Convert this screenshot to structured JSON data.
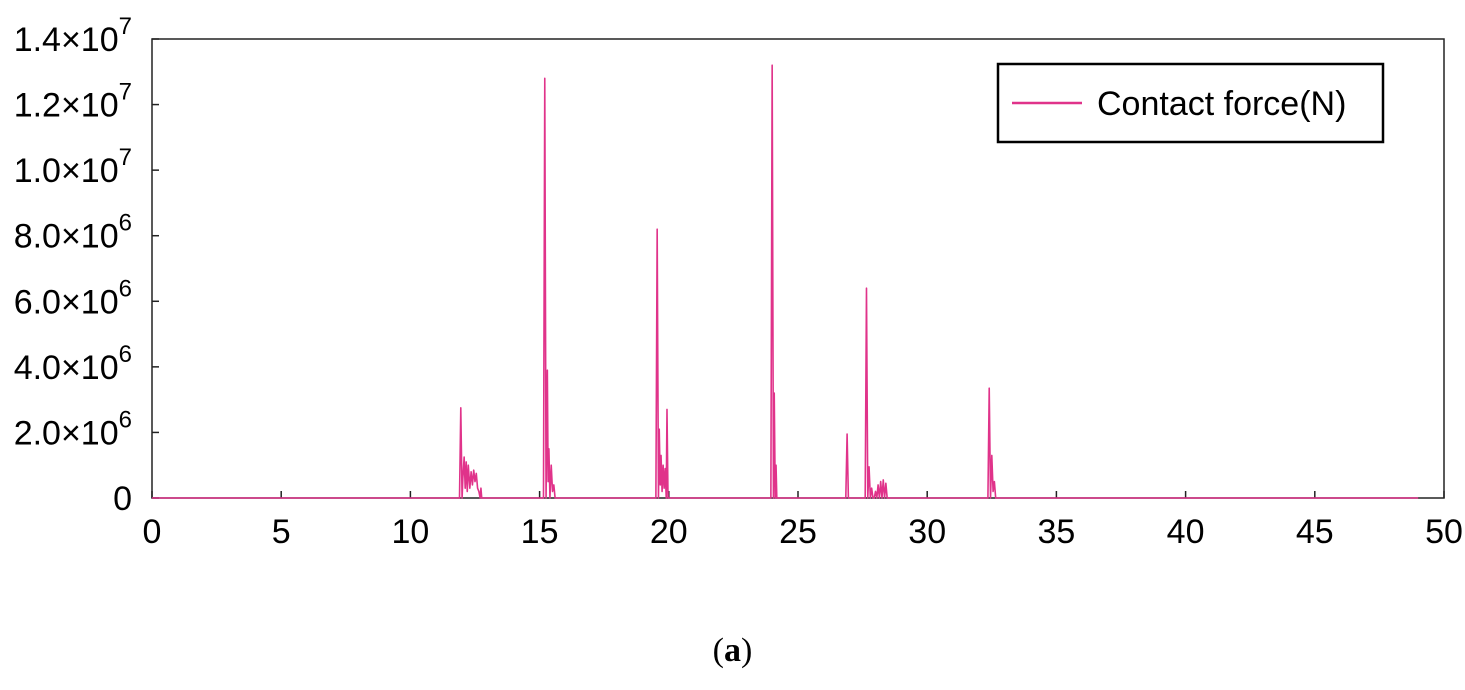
{
  "caption": {
    "open": "(",
    "letter": "a",
    "close": ")"
  },
  "chart_data": {
    "type": "line",
    "xlim": [
      0,
      50
    ],
    "ylim": [
      0,
      14000000
    ],
    "x_ticks": [
      0,
      5,
      10,
      15,
      20,
      25,
      30,
      35,
      40,
      45,
      50
    ],
    "x_tick_labels": [
      "0",
      "5",
      "10",
      "15",
      "20",
      "25",
      "30",
      "35",
      "40",
      "45",
      "50"
    ],
    "y_ticks": [
      {
        "value": 0,
        "mantissa": "0",
        "exponent": ""
      },
      {
        "value": 2000000,
        "mantissa": "2.0×10",
        "exponent": "6"
      },
      {
        "value": 4000000,
        "mantissa": "4.0×10",
        "exponent": "6"
      },
      {
        "value": 6000000,
        "mantissa": "6.0×10",
        "exponent": "6"
      },
      {
        "value": 8000000,
        "mantissa": "8.0×10",
        "exponent": "6"
      },
      {
        "value": 10000000,
        "mantissa": "1.0×10",
        "exponent": "7"
      },
      {
        "value": 12000000,
        "mantissa": "1.2×10",
        "exponent": "7"
      },
      {
        "value": 14000000,
        "mantissa": "1.4×10",
        "exponent": "7"
      }
    ],
    "legend": {
      "position": "top-right",
      "label": "Contact force(N)"
    },
    "grid": false,
    "series": [
      {
        "name": "Contact force(N)",
        "color": "#e0338a",
        "x": [
          0,
          11.9,
          11.95,
          12.0,
          12.03,
          12.08,
          12.12,
          12.16,
          12.2,
          12.24,
          12.3,
          12.35,
          12.4,
          12.45,
          12.5,
          12.55,
          12.6,
          12.65,
          12.7,
          12.73,
          12.76,
          12.8,
          15.15,
          15.2,
          15.25,
          15.3,
          15.33,
          15.36,
          15.4,
          15.45,
          15.5,
          15.55,
          15.6,
          15.65,
          19.5,
          19.55,
          19.6,
          19.63,
          19.67,
          19.7,
          19.74,
          19.78,
          19.82,
          19.86,
          19.9,
          19.93,
          19.97,
          20.0,
          23.95,
          24.0,
          24.05,
          24.08,
          24.12,
          24.15,
          24.18,
          24.22,
          24.25,
          26.85,
          26.9,
          26.95,
          27.6,
          27.65,
          27.7,
          27.75,
          27.8,
          27.85,
          27.9,
          27.95,
          28.0,
          28.05,
          28.1,
          28.15,
          28.2,
          28.25,
          28.3,
          28.35,
          28.4,
          28.45,
          28.5,
          28.55,
          32.35,
          32.4,
          32.45,
          32.5,
          32.55,
          32.6,
          32.65,
          32.7,
          49.0
        ],
        "y": [
          0,
          0,
          2750000,
          0,
          600000,
          1250000,
          300000,
          1100000,
          200000,
          1000000,
          300000,
          800000,
          400000,
          850000,
          500000,
          750000,
          300000,
          200000,
          0,
          300000,
          0,
          0,
          0,
          12800000,
          0,
          3900000,
          500000,
          1500000,
          0,
          1000000,
          200000,
          400000,
          0,
          0,
          0,
          8200000,
          0,
          2100000,
          400000,
          1300000,
          200000,
          1000000,
          300000,
          900000,
          0,
          2700000,
          0,
          0,
          0,
          13200000,
          0,
          3200000,
          0,
          1000000,
          0,
          0,
          0,
          0,
          1950000,
          0,
          0,
          6400000,
          0,
          950000,
          0,
          300000,
          0,
          0,
          200000,
          0,
          400000,
          0,
          500000,
          0,
          550000,
          0,
          450000,
          0,
          0,
          0,
          0,
          3350000,
          0,
          1300000,
          200000,
          500000,
          0,
          0,
          0
        ]
      }
    ]
  }
}
